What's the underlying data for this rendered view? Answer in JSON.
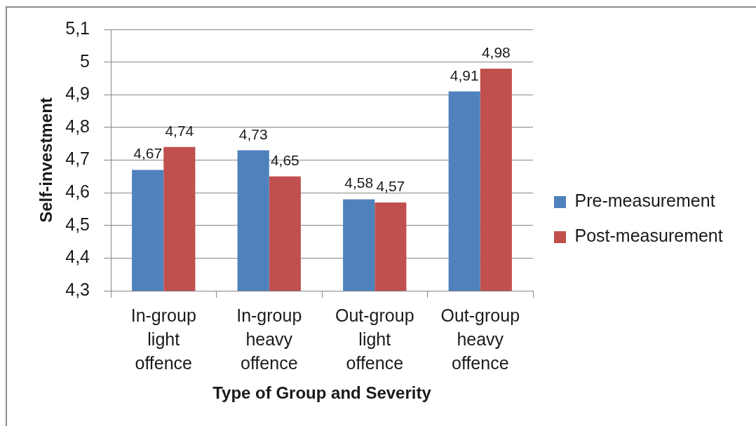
{
  "chart_data": {
    "type": "bar",
    "xlabel": "Type of Group and Severity",
    "ylabel": "Self-investment",
    "categories": [
      "In-group light offence",
      "In-group heavy offence",
      "Out-group light offence",
      "Out-group heavy offence"
    ],
    "series": [
      {
        "name": "Pre-measurement",
        "color": "#4f81bd",
        "values": [
          4.67,
          4.73,
          4.58,
          4.91
        ],
        "value_labels": [
          "4,67",
          "4,73",
          "4,58",
          "4,91"
        ]
      },
      {
        "name": "Post-measurement",
        "color": "#c0504d",
        "values": [
          4.74,
          4.65,
          4.57,
          4.98
        ],
        "value_labels": [
          "4,74",
          "4,65",
          "4,57",
          "4,98"
        ]
      }
    ],
    "ylim": [
      4.3,
      5.1
    ],
    "yticks": [
      {
        "value": 4.3,
        "label": "4,3"
      },
      {
        "value": 4.4,
        "label": "4,4"
      },
      {
        "value": 4.5,
        "label": "4,5"
      },
      {
        "value": 4.6,
        "label": "4,6"
      },
      {
        "value": 4.7,
        "label": "4,7"
      },
      {
        "value": 4.8,
        "label": "4,8"
      },
      {
        "value": 4.9,
        "label": "4,9"
      },
      5,
      {
        "value": 5.1,
        "label": "5,1"
      }
    ],
    "grid": "y",
    "legend": "right"
  }
}
